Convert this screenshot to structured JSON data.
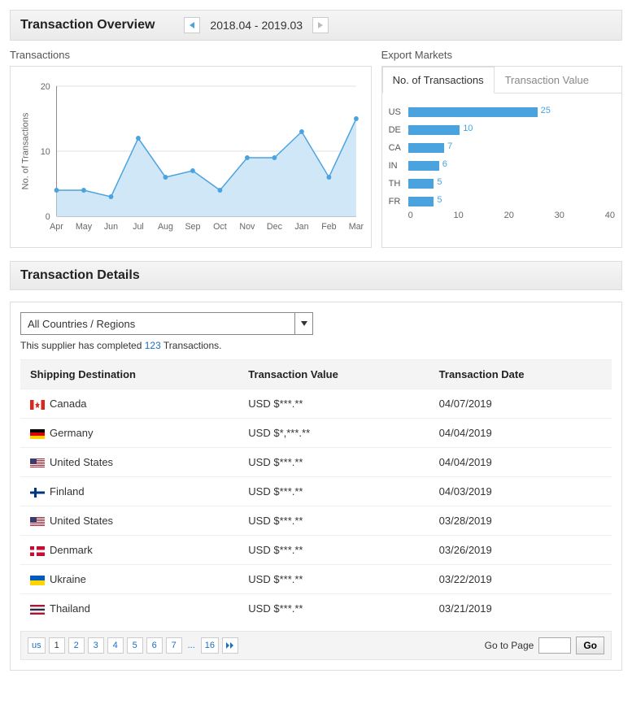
{
  "overview": {
    "title": "Transaction Overview",
    "date_range": "2018.04 - 2019.03"
  },
  "transactions_chart": {
    "title": "Transactions",
    "ylabel": "No. of Transactions",
    "type": "line-area",
    "months": [
      "Apr",
      "May",
      "Jun",
      "Jul",
      "Aug",
      "Sep",
      "Oct",
      "Nov",
      "Dec",
      "Jan",
      "Feb",
      "Mar"
    ],
    "values": [
      4,
      4,
      3,
      12,
      6,
      7,
      4,
      9,
      9,
      13,
      6,
      15
    ],
    "ylim": [
      0,
      20
    ],
    "ytick_step": 10,
    "line_color": "#4aa3df",
    "fill_color": "#cfe7f7",
    "point_color": "#4aa3df",
    "grid_color": "#e0e0e0",
    "axis_color": "#888888",
    "background": "#ffffff",
    "label_fontsize": 11
  },
  "export_markets": {
    "title": "Export Markets",
    "tabs": {
      "active": "No. of Transactions",
      "other": "Transaction Value"
    },
    "type": "hbar",
    "max_axis": 40,
    "axis_ticks": [
      0,
      10,
      20,
      30,
      40
    ],
    "bar_color": "#4aa3df",
    "value_color": "#4aa3df",
    "label_color": "#555555",
    "items": [
      {
        "code": "US",
        "value": 25
      },
      {
        "code": "DE",
        "value": 10
      },
      {
        "code": "CA",
        "value": 7
      },
      {
        "code": "IN",
        "value": 6
      },
      {
        "code": "TH",
        "value": 5
      },
      {
        "code": "FR",
        "value": 5
      }
    ]
  },
  "details": {
    "title": "Transaction Details",
    "dropdown": "All Countries / Regions",
    "supplier_prefix": "This supplier has completed ",
    "supplier_count": "123",
    "supplier_suffix": " Transactions.",
    "columns": [
      "Shipping Destination",
      "Transaction Value",
      "Transaction Date"
    ],
    "rows": [
      {
        "country": "Canada",
        "flag": "ca",
        "value": "USD $***.**",
        "date": "04/07/2019"
      },
      {
        "country": "Germany",
        "flag": "de",
        "value": "USD $*,***.**",
        "date": "04/04/2019"
      },
      {
        "country": "United States",
        "flag": "us",
        "value": "USD $***.**",
        "date": "04/04/2019"
      },
      {
        "country": "Finland",
        "flag": "fi",
        "value": "USD $***.**",
        "date": "04/03/2019"
      },
      {
        "country": "United States",
        "flag": "us",
        "value": "USD $***.**",
        "date": "03/28/2019"
      },
      {
        "country": "Denmark",
        "flag": "dk",
        "value": "USD $***.**",
        "date": "03/26/2019"
      },
      {
        "country": "Ukraine",
        "flag": "ua",
        "value": "USD $***.**",
        "date": "03/22/2019"
      },
      {
        "country": "Thailand",
        "flag": "th",
        "value": "USD $***.**",
        "date": "03/21/2019"
      }
    ],
    "flag_colors": {
      "ca": {
        "bg": "#ffffff",
        "stripes": [
          "#d52b1e",
          "#ffffff",
          "#d52b1e"
        ],
        "leaf": "#d52b1e"
      },
      "de": {
        "hstripes": [
          "#000000",
          "#dd0000",
          "#ffce00"
        ]
      },
      "us": {
        "bg": "#b22234",
        "canton": "#3c3b6e"
      },
      "fi": {
        "bg": "#ffffff",
        "cross": "#003580"
      },
      "dk": {
        "bg": "#c60c30",
        "cross": "#ffffff"
      },
      "ua": {
        "hstripes": [
          "#005bbb",
          "#ffd500"
        ]
      },
      "th": {
        "hstripes": [
          "#a51931",
          "#f4f5f8",
          "#2d2a4a",
          "#f4f5f8",
          "#a51931"
        ]
      }
    }
  },
  "pager": {
    "first_label": "us",
    "pages": [
      "1",
      "2",
      "3",
      "4",
      "5",
      "6",
      "7"
    ],
    "current": "1",
    "last": "16",
    "goto_label": "Go to Page",
    "go_btn": "Go"
  }
}
